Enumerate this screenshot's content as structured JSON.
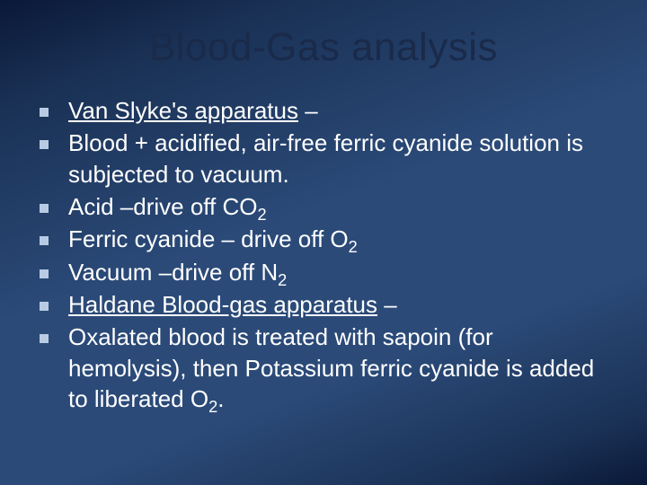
{
  "slide": {
    "title": "Blood-Gas analysis",
    "title_color": "#1a2a4a",
    "title_fontsize": 44,
    "background_gradient": [
      "#0a1838",
      "#1a3155",
      "#2b4a78",
      "#2b4a78",
      "#1a3155",
      "#0a1838"
    ],
    "bullet_marker_color": "#b9cbe3",
    "bullet_marker_size": 10,
    "text_color": "#ffffff",
    "text_fontsize": 26,
    "bullets": [
      {
        "underlined": "Van Slyke's apparatus",
        "plain": " –"
      },
      {
        "plain": "Blood + acidified, air-free ferric cyanide solution is subjected to vacuum."
      },
      {
        "plain_before": "Acid –drive off CO",
        "sub": "2"
      },
      {
        "plain_before": "Ferric cyanide – drive off O",
        "sub": "2"
      },
      {
        "plain_before": "Vacuum –drive off N",
        "sub": "2"
      },
      {
        "underlined": "Haldane Blood-gas apparatus",
        "plain": " –"
      },
      {
        "plain_before": "Oxalated blood is treated with sapoin (for hemolysis), then Potassium ferric cyanide is added to liberated O",
        "sub": "2",
        "plain_after": "."
      }
    ]
  }
}
